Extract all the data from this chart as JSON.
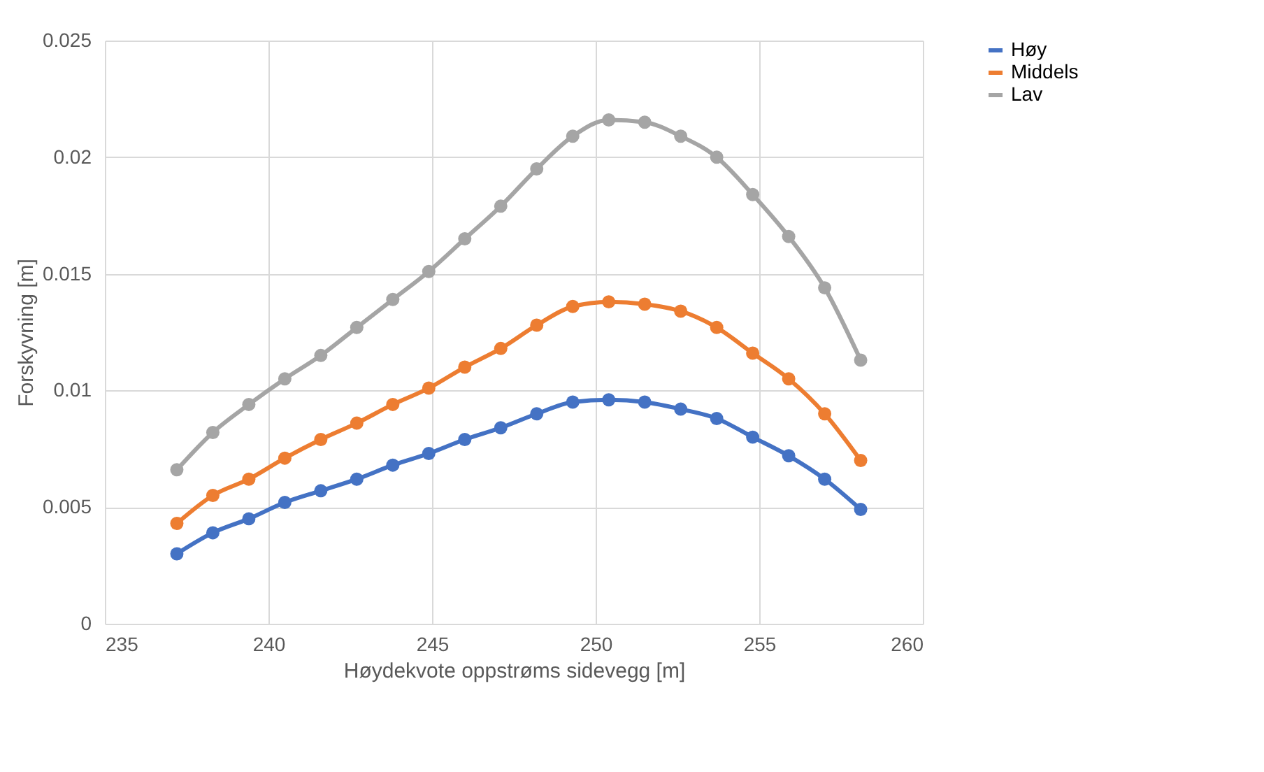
{
  "chart_data": {
    "type": "line",
    "xlabel": "Høydekvote oppstrøms sidevegg [m]",
    "ylabel": "Forskyvning [m]",
    "x": [
      237.2,
      238.3,
      239.4,
      240.5,
      241.6,
      242.7,
      243.8,
      244.9,
      246.0,
      247.1,
      248.2,
      249.3,
      250.4,
      251.5,
      252.6,
      253.7,
      254.8,
      255.9,
      257.0,
      258.1
    ],
    "series": [
      {
        "name": "Høy",
        "color": "#4472c4",
        "values": [
          0.003,
          0.0039,
          0.0045,
          0.0052,
          0.0057,
          0.0062,
          0.0068,
          0.0073,
          0.0079,
          0.0084,
          0.009,
          0.0095,
          0.0096,
          0.0095,
          0.0092,
          0.0088,
          0.008,
          0.0072,
          0.0062,
          0.0049
        ]
      },
      {
        "name": "Middels",
        "color": "#ed7d31",
        "values": [
          0.0043,
          0.0055,
          0.0062,
          0.0071,
          0.0079,
          0.0086,
          0.0094,
          0.0101,
          0.011,
          0.0118,
          0.0128,
          0.0136,
          0.0138,
          0.0137,
          0.0134,
          0.0127,
          0.0116,
          0.0105,
          0.009,
          0.007
        ]
      },
      {
        "name": "Lav",
        "color": "#a5a5a5",
        "values": [
          0.0066,
          0.0082,
          0.0094,
          0.0105,
          0.0115,
          0.0127,
          0.0139,
          0.0151,
          0.0165,
          0.0179,
          0.0195,
          0.0209,
          0.0216,
          0.0215,
          0.0209,
          0.02,
          0.0184,
          0.0166,
          0.0144,
          0.0113
        ]
      }
    ],
    "xlim": [
      235,
      260
    ],
    "xticks": [
      235,
      240,
      245,
      250,
      255,
      260
    ],
    "ylim": [
      0,
      0.025
    ],
    "yticks": [
      0,
      0.005,
      0.01,
      0.015,
      0.02,
      0.025
    ],
    "grid": true,
    "legend": "right",
    "marker": "circle",
    "line_style": "solid"
  }
}
